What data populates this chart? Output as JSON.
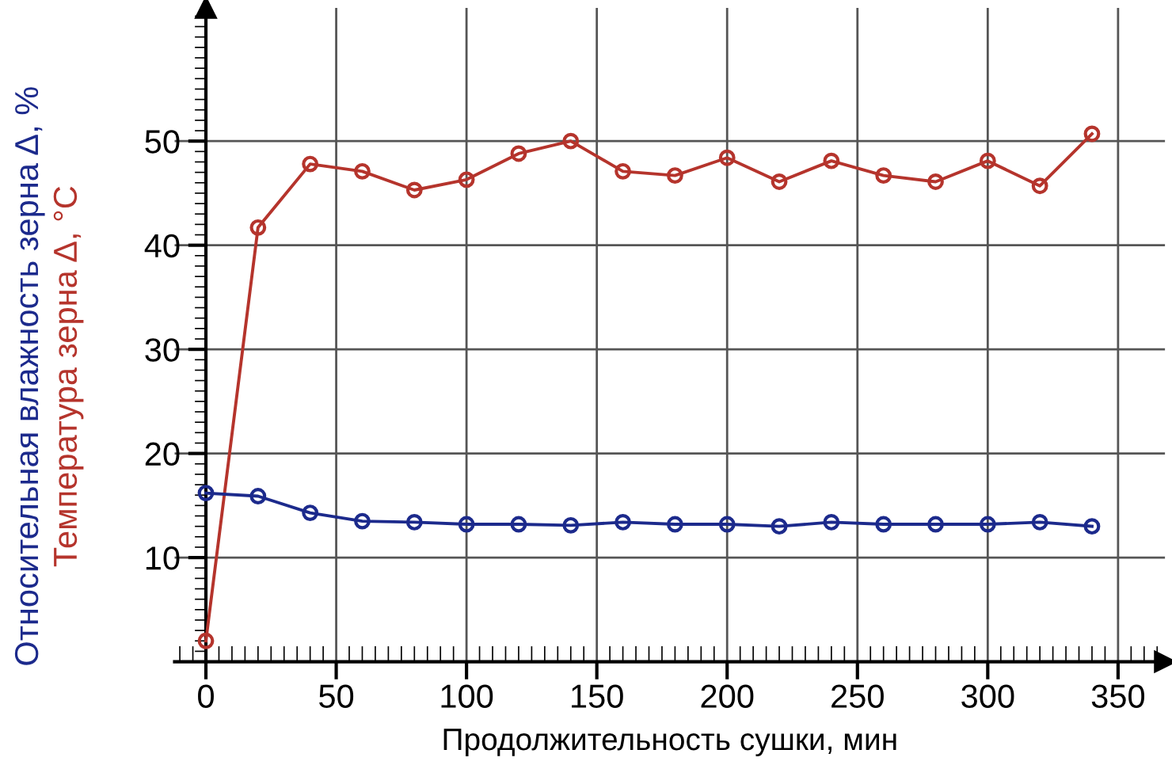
{
  "chart_data": {
    "type": "line",
    "xlabel": "Продолжительность сушки, мин",
    "x": [
      0,
      20,
      40,
      60,
      80,
      100,
      120,
      140,
      160,
      180,
      200,
      220,
      240,
      260,
      280,
      300,
      320,
      340
    ],
    "series": [
      {
        "name": "Температура зерна Δ, °C",
        "color": "#b5342c",
        "values": [
          2,
          41.7,
          47.8,
          47.1,
          45.3,
          46.3,
          48.8,
          50.0,
          47.1,
          46.7,
          48.4,
          46.1,
          48.1,
          46.7,
          46.1,
          48.1,
          45.7,
          50.7
        ]
      },
      {
        "name": "Относительная влажность зерна Δ, %",
        "color": "#1c2a8c",
        "values": [
          16.2,
          15.9,
          14.3,
          13.5,
          13.4,
          13.2,
          13.2,
          13.1,
          13.4,
          13.2,
          13.2,
          13.0,
          13.4,
          13.2,
          13.2,
          13.2,
          13.4,
          13.0
        ]
      }
    ],
    "xlim": [
      -12,
      368
    ],
    "ylim": [
      0,
      62.8
    ],
    "xticks": [
      0,
      50,
      100,
      150,
      200,
      250,
      300,
      350
    ],
    "yticks": [
      10,
      20,
      30,
      40,
      50
    ],
    "grid": true,
    "marker": "circle",
    "line_style": "solid",
    "legend": false
  }
}
